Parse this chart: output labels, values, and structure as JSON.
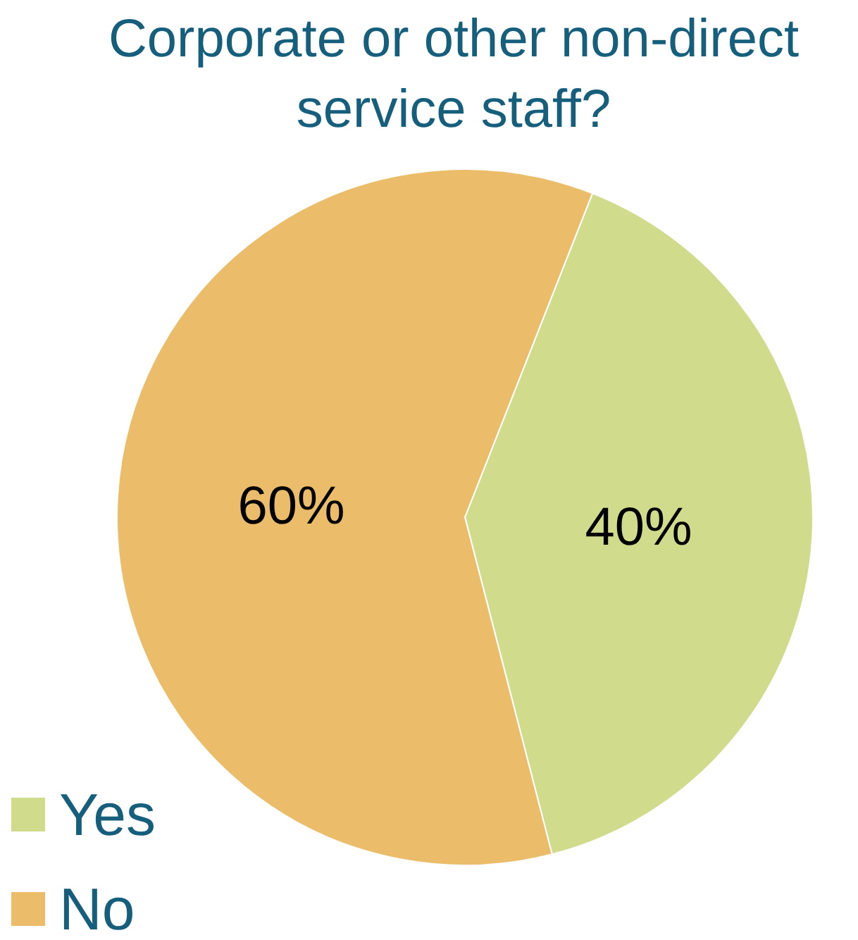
{
  "chart_data": {
    "type": "pie",
    "title": "Corporate or other non-direct service staff?",
    "categories": [
      "Yes",
      "No"
    ],
    "values": [
      40,
      60
    ],
    "colors": [
      "#d0dc8c",
      "#ebbc6a"
    ],
    "value_labels": [
      "40%",
      "60%"
    ],
    "legend": "bottom left"
  }
}
